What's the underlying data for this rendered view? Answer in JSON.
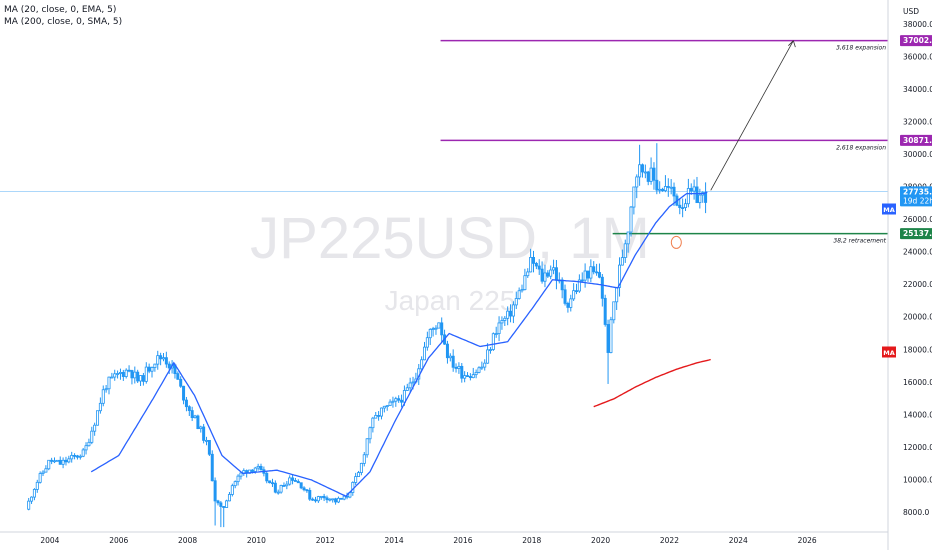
{
  "indicators": [
    "MA (20, close, 0, EMA, 5)",
    "MA (200, close, 0, SMA, 5)"
  ],
  "colors": {
    "candle": "#2196f3",
    "ema20": "#2962ff",
    "sma200": "#e4191b",
    "fib_line": "#9c27b0",
    "fib_label_bg": "#9c27b0",
    "support_line": "#1e8449",
    "support_label_bg": "#1e8449",
    "price_line": "#90caf9",
    "price_label_bg": "#2196f3",
    "ma_badge_blue": "#2962ff",
    "ma_badge_red": "#e4191b",
    "watermark": "#e9e9ec",
    "marker": "#f08050"
  },
  "chart_data": {
    "type": "candlestick",
    "symbol_watermark": "JP225USD, 1M",
    "name_watermark": "Japan 225",
    "currency_label": "USD",
    "y_ticks": [
      "8000.0",
      "10000.0",
      "12000.0",
      "14000.0",
      "16000.0",
      "18000.0",
      "20000.0",
      "22000.0",
      "24000.0",
      "26000.0",
      "28000.0",
      "30000.0",
      "32000.0",
      "34000.0",
      "36000.0",
      "38000.0"
    ],
    "y_range": [
      6800,
      39500
    ],
    "x_ticks": [
      "2004",
      "2006",
      "2008",
      "2010",
      "2012",
      "2014",
      "2016",
      "2018",
      "2020",
      "2022",
      "2024",
      "2026"
    ],
    "x_range": [
      2002.55,
      2028.35
    ],
    "series": [
      {
        "name": "JP225USD",
        "x": [
          2003.3,
          2003.6,
          2004.0,
          2004.3,
          2004.6,
          2005.0,
          2005.3,
          2005.6,
          2006.0,
          2006.3,
          2006.6,
          2007.0,
          2007.3,
          2007.6,
          2008.0,
          2008.3,
          2008.6,
          2008.8,
          2009.0,
          2009.3,
          2009.6,
          2010.0,
          2010.3,
          2010.6,
          2011.0,
          2011.3,
          2011.6,
          2012.0,
          2012.3,
          2012.6,
          2013.0,
          2013.3,
          2013.6,
          2014.0,
          2014.3,
          2014.6,
          2015.0,
          2015.3,
          2015.6,
          2016.0,
          2016.3,
          2016.6,
          2017.0,
          2017.3,
          2017.6,
          2018.0,
          2018.3,
          2018.6,
          2019.0,
          2019.3,
          2019.6,
          2020.0,
          2020.2,
          2020.4,
          2020.6,
          2020.8,
          2021.0,
          2021.3,
          2021.6,
          2022.0,
          2022.3,
          2022.6,
          2023.0,
          2023.1
        ],
        "values": [
          8200,
          9800,
          11200,
          11000,
          11300,
          11700,
          13600,
          15800,
          16500,
          16800,
          16000,
          17300,
          17600,
          16700,
          14500,
          13400,
          12000,
          8800,
          8100,
          9700,
          10500,
          10800,
          10000,
          9300,
          10200,
          9700,
          8800,
          9000,
          8700,
          8900,
          10500,
          13300,
          14200,
          14700,
          15200,
          16300,
          18900,
          19800,
          17400,
          16500,
          16600,
          17000,
          19500,
          20000,
          21300,
          23500,
          22400,
          23200,
          20800,
          21800,
          22800,
          22500,
          17800,
          21200,
          23500,
          25600,
          28900,
          29200,
          28200,
          27800,
          27000,
          27500,
          27400,
          27735
        ]
      },
      {
        "name": "MA (20, close, 0, EMA, 5)",
        "x": [
          2005.2,
          2006.0,
          2007.0,
          2007.6,
          2008.2,
          2009.0,
          2009.6,
          2010.6,
          2011.6,
          2012.6,
          2013.3,
          2014.0,
          2015.0,
          2015.6,
          2016.5,
          2017.3,
          2018.0,
          2018.6,
          2019.3,
          2020.0,
          2020.5,
          2021.0,
          2021.6,
          2022.0,
          2022.5,
          2023.0,
          2023.1
        ],
        "values": [
          10500,
          11500,
          15000,
          17200,
          15200,
          11500,
          10400,
          10600,
          10000,
          9000,
          10500,
          13500,
          17500,
          19000,
          18200,
          18500,
          20500,
          22300,
          22200,
          22000,
          21800,
          23800,
          25800,
          26800,
          27600,
          27600,
          27700
        ]
      },
      {
        "name": "MA (200, close, 0, SMA, 5)",
        "x": [
          2019.8,
          2020.4,
          2021.0,
          2021.6,
          2022.2,
          2022.8,
          2023.2
        ],
        "values": [
          14500,
          15000,
          15700,
          16300,
          16800,
          17200,
          17400
        ]
      }
    ],
    "levels": [
      {
        "value": "37002.3",
        "caption": "3,618 expansion"
      },
      {
        "value": "30871.2",
        "caption": "2,618 expansion"
      },
      {
        "value": "25137.2",
        "caption": "38,2 retracement"
      }
    ],
    "current_price": "27735.0",
    "countdown": "19d 22h",
    "ma_badges": [
      "MA",
      "MA"
    ],
    "projection": {
      "from": [
        2023.2,
        27800
      ],
      "to": [
        2025.6,
        37000
      ]
    },
    "marker": {
      "x": 2022.2,
      "y": 24600
    }
  }
}
